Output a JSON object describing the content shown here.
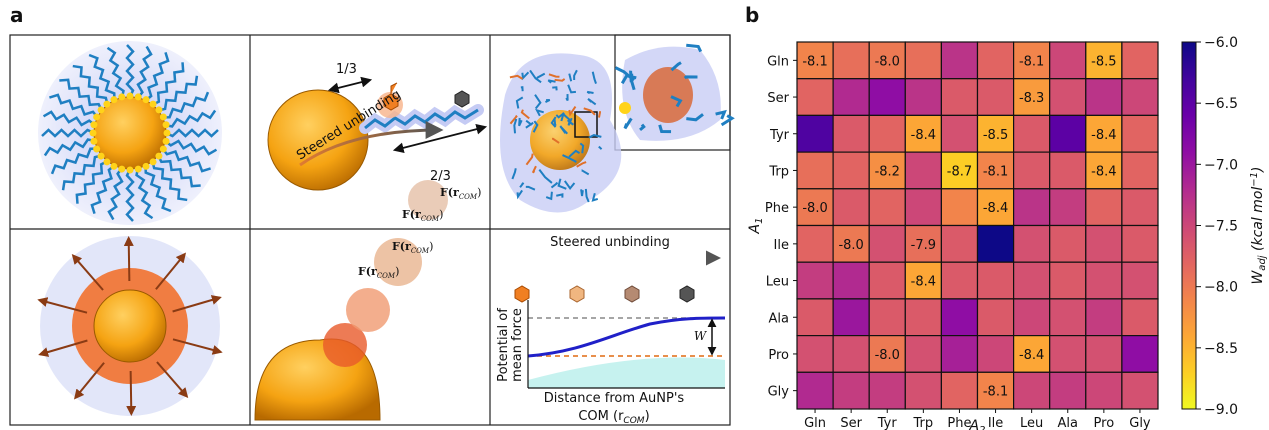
{
  "panel_labels": [
    "a",
    "b"
  ],
  "panel_a": {
    "ratio_short": "1/3",
    "ratio_long": "2/3",
    "steered_unbinding": "Steered unbinding",
    "force_labels": [
      [
        "F(r",
        "COM",
        ")"
      ],
      [
        "F(r",
        "COM",
        ")"
      ],
      [
        "F(r",
        "COM",
        ")"
      ],
      [
        "F(r",
        "COM",
        ")"
      ]
    ],
    "pmf_title": "Steered unbinding",
    "pmf_ylabel": [
      "Potential of",
      "mean force"
    ],
    "pmf_w": "W",
    "pmf_xlabel": [
      "Distance from AuNP's",
      "COM (r",
      "COM",
      ")"
    ]
  },
  "chart_data": {
    "type": "heatmap",
    "categories": [
      "Gln",
      "Ser",
      "Tyr",
      "Trp",
      "Phe",
      "Ile",
      "Leu",
      "Ala",
      "Pro",
      "Gly"
    ],
    "rows": [
      "Gln",
      "Ser",
      "Tyr",
      "Trp",
      "Phe",
      "Ile",
      "Leu",
      "Ala",
      "Pro",
      "Gly"
    ],
    "xlabel": [
      "A",
      "2"
    ],
    "ylabel": [
      "A",
      "1"
    ],
    "values": [
      [
        -8.1,
        -7.9,
        -8.0,
        -7.9,
        -7.3,
        -7.8,
        -8.1,
        -7.5,
        -8.5,
        -7.8
      ],
      [
        -7.8,
        -7.2,
        -6.9,
        -7.3,
        -7.7,
        -7.7,
        -8.3,
        -7.6,
        -7.3,
        -7.5
      ],
      [
        -6.4,
        -7.7,
        -7.8,
        -8.4,
        -7.6,
        -8.5,
        -7.7,
        -6.5,
        -8.4,
        -7.8
      ],
      [
        -7.9,
        -7.8,
        -8.2,
        -7.5,
        -8.7,
        -8.1,
        -7.7,
        -7.7,
        -8.4,
        -7.8
      ],
      [
        -8.0,
        -7.7,
        -7.8,
        -7.5,
        -8.1,
        -8.4,
        -7.3,
        -7.4,
        -7.8,
        -7.7
      ],
      [
        -7.8,
        -8.0,
        -7.6,
        -7.9,
        -7.7,
        -6.0,
        -7.6,
        -7.7,
        -7.6,
        -7.7
      ],
      [
        -7.4,
        -7.2,
        -7.7,
        -8.4,
        -7.7,
        -7.7,
        -7.6,
        -7.7,
        -7.6,
        -7.6
      ],
      [
        -7.7,
        -7.0,
        -7.7,
        -7.7,
        -6.9,
        -7.7,
        -7.5,
        -7.6,
        -7.4,
        -7.7
      ],
      [
        -7.6,
        -7.6,
        -8.0,
        -7.6,
        -7.1,
        -7.5,
        -8.4,
        -7.6,
        -7.6,
        -6.9
      ],
      [
        -7.2,
        -7.4,
        -7.4,
        -7.6,
        -7.8,
        -8.1,
        -7.5,
        -7.4,
        -7.5,
        -7.6
      ]
    ],
    "value_labels": [
      [
        "-8.1",
        null,
        "-8.0",
        null,
        null,
        null,
        "-8.1",
        null,
        "-8.5",
        null
      ],
      [
        null,
        null,
        null,
        null,
        null,
        null,
        "-8.3",
        null,
        null,
        null
      ],
      [
        null,
        null,
        null,
        "-8.4",
        null,
        "-8.5",
        null,
        null,
        "-8.4",
        null
      ],
      [
        null,
        null,
        "-8.2",
        null,
        "-8.7",
        "-8.1",
        null,
        null,
        "-8.4",
        null
      ],
      [
        "-8.0",
        null,
        null,
        null,
        null,
        "-8.4",
        null,
        null,
        null,
        null
      ],
      [
        null,
        "-8.0",
        null,
        "-7.9",
        null,
        null,
        null,
        null,
        null,
        null
      ],
      [
        null,
        null,
        null,
        "-8.4",
        null,
        null,
        null,
        null,
        null,
        null
      ],
      [
        null,
        null,
        null,
        null,
        null,
        null,
        null,
        null,
        null,
        null
      ],
      [
        null,
        null,
        "-8.0",
        null,
        null,
        null,
        "-8.4",
        null,
        null,
        null
      ],
      [
        null,
        null,
        null,
        null,
        null,
        "-8.1",
        null,
        null,
        null,
        null
      ]
    ],
    "colormap": "plasma_r",
    "clim": [
      -9,
      -6
    ],
    "colorbar_ticks": [
      {
        "value": -6,
        "label": "−6.0"
      },
      {
        "value": -6.5,
        "label": "−6.5"
      },
      {
        "value": -7,
        "label": "−7.0"
      },
      {
        "value": -7.5,
        "label": "−7.5"
      },
      {
        "value": -8,
        "label": "−8.0"
      },
      {
        "value": -8.5,
        "label": "−8.5"
      },
      {
        "value": -9,
        "label": "−9.0"
      }
    ],
    "colorbar_label": [
      "W",
      "adj",
      " (kcal mol",
      "−1",
      ")"
    ]
  }
}
